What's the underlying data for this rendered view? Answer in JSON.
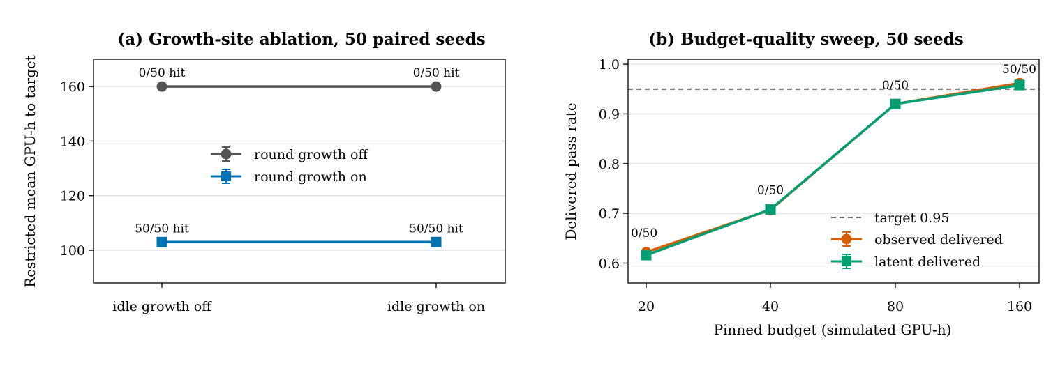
{
  "chart_data": [
    {
      "type": "line",
      "title": "(a) Growth-site ablation, 50 paired seeds",
      "xlabel": "",
      "ylabel": "Restricted mean GPU-h to target",
      "categories": [
        "idle growth off",
        "idle growth on"
      ],
      "ylim": [
        88,
        170
      ],
      "yticks": [
        100,
        120,
        140,
        160
      ],
      "grid": "horizontal",
      "legend_position": "center",
      "series": [
        {
          "name": "round growth off",
          "values": [
            160,
            160
          ],
          "color": "#555555",
          "marker": "circle",
          "annotations": [
            "0/50 hit",
            "0/50 hit"
          ]
        },
        {
          "name": "round growth on",
          "values": [
            103,
            103
          ],
          "color": "#0072b2",
          "marker": "square",
          "annotations": [
            "50/50 hit",
            "50/50 hit"
          ]
        }
      ]
    },
    {
      "type": "line",
      "title": "(b) Budget-quality sweep, 50 seeds",
      "xlabel": "Pinned budget (simulated GPU-h)",
      "ylabel": "Delivered pass rate",
      "categories": [
        "20",
        "40",
        "80",
        "160"
      ],
      "ylim": [
        0.56,
        1.01
      ],
      "yticks": [
        0.6,
        0.7,
        0.8,
        0.9,
        1.0
      ],
      "ytick_labels": [
        "0.6",
        "0.7",
        "0.8",
        "0.9",
        "1.0"
      ],
      "grid": "horizontal",
      "legend_position": "lower-right",
      "reference_line": {
        "name": "target 0.95",
        "y": 0.95,
        "color": "#555555"
      },
      "annotations": [
        "0/50",
        "0/50",
        "0/50",
        "50/50"
      ],
      "series": [
        {
          "name": "observed delivered",
          "values": [
            0.622,
            0.707,
            0.92,
            0.962
          ],
          "color": "#d55e00",
          "marker": "circle"
        },
        {
          "name": "latent delivered",
          "values": [
            0.616,
            0.708,
            0.92,
            0.958
          ],
          "color": "#009e73",
          "marker": "square"
        }
      ]
    }
  ]
}
